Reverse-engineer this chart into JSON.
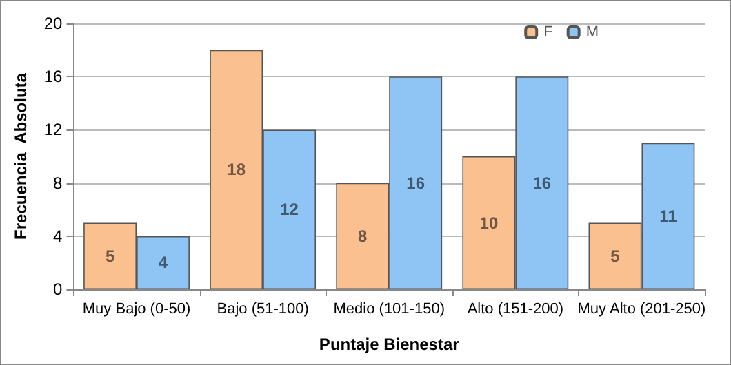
{
  "chart_data": {
    "type": "bar",
    "xlabel": "Puntaje Bienestar",
    "ylabel": "Frecuencia  Absoluta",
    "categories": [
      "Muy Bajo (0-50)",
      "Bajo (51-100)",
      "Medio (101-150)",
      "Alto (151-200)",
      "Muy Alto (201-250)"
    ],
    "series": [
      {
        "name": "F",
        "color": "#fac090",
        "values": [
          5,
          18,
          8,
          10,
          5
        ]
      },
      {
        "name": "M",
        "color": "#8ec5f5",
        "values": [
          4,
          12,
          16,
          16,
          11
        ]
      }
    ],
    "ylim": [
      0,
      20
    ],
    "yticks": [
      0,
      4,
      8,
      12,
      16,
      20
    ],
    "grid": "y",
    "legend": "top right",
    "data_labels": true
  }
}
